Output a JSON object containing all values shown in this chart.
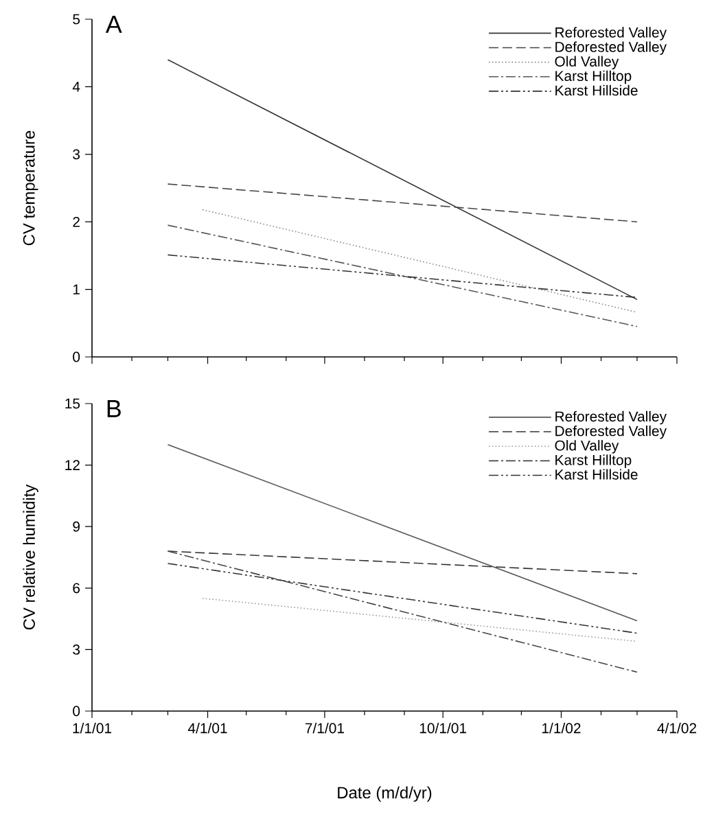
{
  "chart_data": [
    {
      "type": "line",
      "title": "A",
      "ylabel": "CV temperature",
      "legend": "top right",
      "tick_labels": "y",
      "x": [
        "2001-03-01",
        "2002-03-01"
      ],
      "xlim": [
        "2001-01-01",
        "2002-04-01"
      ],
      "xticks": [
        "2001-01-01",
        {
          "value": "2001-02-01",
          "label": null
        },
        {
          "value": "2001-03-01",
          "label": null
        },
        "2001-04-01",
        {
          "value": "2001-05-01",
          "label": null
        },
        {
          "value": "2001-06-01",
          "label": null
        },
        "2001-07-01",
        {
          "value": "2001-08-01",
          "label": null
        },
        {
          "value": "2001-09-01",
          "label": null
        },
        "2001-10-01",
        {
          "value": "2001-11-01",
          "label": null
        },
        {
          "value": "2001-12-01",
          "label": null
        },
        "2002-01-01",
        {
          "value": "2002-02-01",
          "label": null
        },
        {
          "value": "2002-03-01",
          "label": null
        },
        "2002-04-01"
      ],
      "ylim": [
        0,
        5
      ],
      "yticks": [
        0,
        1,
        2,
        3,
        4,
        5
      ],
      "series": [
        {
          "name": "Reforested Valley",
          "color": "#333333",
          "line_style": "solid",
          "values": [
            4.4,
            0.85
          ]
        },
        {
          "name": "Deforested Valley",
          "color": "#444444",
          "line_style": "dashed",
          "values": [
            2.56,
            2.0
          ]
        },
        {
          "name": "Old Valley",
          "color": "#888888",
          "line_style": "dotted",
          "x": [
            "2001-03-28",
            "2002-03-01"
          ],
          "values": [
            2.18,
            0.66
          ]
        },
        {
          "name": "Karst Hilltop",
          "color": "#555555",
          "line_style": "dashdot",
          "values": [
            1.95,
            0.45
          ]
        },
        {
          "name": "Karst Hillside",
          "color": "#333333",
          "line_style": "dashdotdot",
          "values": [
            1.51,
            0.88
          ]
        }
      ]
    },
    {
      "type": "line",
      "title": "B",
      "ylabel": "CV relative humidity",
      "xlabel": "Date (m/d/yr)",
      "legend": "top right",
      "x": [
        "2001-03-01",
        "2002-03-01"
      ],
      "xlim": [
        "2001-01-01",
        "2002-04-01"
      ],
      "xticks": [
        {
          "value": "2001-01-01",
          "label": "1/1/01"
        },
        {
          "value": "2001-02-01",
          "label": null
        },
        {
          "value": "2001-03-01",
          "label": null
        },
        {
          "value": "2001-04-01",
          "label": "4/1/01"
        },
        {
          "value": "2001-05-01",
          "label": null
        },
        {
          "value": "2001-06-01",
          "label": null
        },
        {
          "value": "2001-07-01",
          "label": "7/1/01"
        },
        {
          "value": "2001-08-01",
          "label": null
        },
        {
          "value": "2001-09-01",
          "label": null
        },
        {
          "value": "2001-10-01",
          "label": "10/1/01"
        },
        {
          "value": "2001-11-01",
          "label": null
        },
        {
          "value": "2001-12-01",
          "label": null
        },
        {
          "value": "2002-01-01",
          "label": "1/1/02"
        },
        {
          "value": "2002-02-01",
          "label": null
        },
        {
          "value": "2002-03-01",
          "label": null
        },
        {
          "value": "2002-04-01",
          "label": "4/1/02"
        }
      ],
      "ylim": [
        0,
        15
      ],
      "yticks": [
        0,
        3,
        6,
        9,
        12,
        15
      ],
      "series": [
        {
          "name": "Reforested Valley",
          "color": "#555555",
          "line_style": "solid",
          "values": [
            13.0,
            4.4
          ]
        },
        {
          "name": "Deforested Valley",
          "color": "#333333",
          "line_style": "dashed",
          "values": [
            7.8,
            6.7
          ]
        },
        {
          "name": "Old Valley",
          "color": "#999999",
          "line_style": "dotted",
          "x": [
            "2001-03-28",
            "2002-03-01"
          ],
          "values": [
            5.5,
            3.4
          ]
        },
        {
          "name": "Karst Hilltop",
          "color": "#444444",
          "line_style": "dashdot",
          "values": [
            7.8,
            1.9
          ]
        },
        {
          "name": "Karst Hillside",
          "color": "#333333",
          "line_style": "dashdotdot",
          "values": [
            7.2,
            3.8
          ]
        }
      ]
    }
  ]
}
